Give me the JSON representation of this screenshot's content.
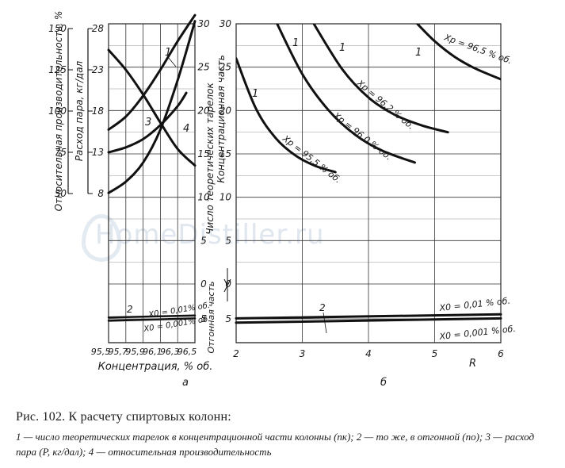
{
  "watermark": "HomeDistiller.ru",
  "caption": {
    "title": "Рис. 102. К расчету спиртовых колонн:",
    "body": "1 — число теоретических тарелок в концентрационной части колонны (nк); 2 — то же, в отгонной (nо); 3 — расход пара (P, кг/дал); 4 — относительная производительность"
  },
  "chart_data": [
    {
      "id": "a",
      "panel_label": "а",
      "type": "line",
      "xlabel": "Концентрация, % об.",
      "x_ticks": [
        "95,5",
        "95,7",
        "95,9",
        "96,1",
        "96,3",
        "96,5"
      ],
      "xlim": [
        95.5,
        96.5
      ],
      "axes": [
        {
          "label": "Относительная производительность, %",
          "ticks": [
            "150",
            "125",
            "100",
            "75",
            "50"
          ],
          "lim": [
            50,
            150
          ]
        },
        {
          "label": "Расход пара, кг/дал",
          "ticks": [
            "28",
            "23",
            "18",
            "13",
            "8"
          ],
          "lim": [
            8,
            28
          ]
        },
        {
          "label": "Число теоретических тарелок",
          "top_label": "Концентрационная часть",
          "bottom_label": "Отгонная часть",
          "ticks_upper": [
            "30",
            "25",
            "20",
            "15",
            "10",
            "5",
            "0"
          ],
          "ticks_lower": [
            "5"
          ],
          "lim_upper": [
            0,
            30
          ],
          "lim_lower": [
            0,
            5
          ]
        }
      ],
      "series": [
        {
          "name": "1",
          "axis": "plates_upper",
          "x": [
            95.5,
            95.7,
            95.9,
            96.1,
            96.3,
            96.5
          ],
          "y": [
            10.5,
            11.8,
            14.0,
            17.8,
            23.5,
            30.3
          ]
        },
        {
          "name": "1",
          "axis": "plates_upper",
          "x": [
            95.5,
            95.7,
            95.9,
            96.1,
            96.3,
            96.5
          ],
          "y": [
            17.8,
            19.3,
            21.7,
            24.7,
            28.0,
            31.0
          ]
        },
        {
          "name": "3",
          "axis": "steam",
          "x": [
            95.5,
            95.7,
            95.9,
            96.1,
            96.3,
            96.4
          ],
          "y": [
            13.0,
            13.6,
            14.6,
            16.3,
            18.6,
            20.2
          ]
        },
        {
          "name": "4",
          "axis": "productivity",
          "x": [
            95.5,
            95.7,
            95.9,
            96.1,
            96.3,
            96.5
          ],
          "y": [
            137,
            125,
            110,
            93,
            77,
            67
          ]
        },
        {
          "name": "2",
          "axis": "plates_lower",
          "x": [
            95.5,
            96.5
          ],
          "y": [
            5.3,
            5.7
          ],
          "annotation": "X0 = 0,01% об."
        },
        {
          "name": "2",
          "axis": "plates_lower",
          "x": [
            95.5,
            96.5
          ],
          "y": [
            4.6,
            5.1
          ],
          "annotation": "X0 = 0,001% об."
        }
      ]
    },
    {
      "id": "b",
      "panel_label": "б",
      "type": "line",
      "xlabel": "R",
      "x_ticks": [
        "2",
        "3",
        "4",
        "5",
        "6"
      ],
      "xlim": [
        2,
        6
      ],
      "y_ticks_upper": [
        "30",
        "25",
        "20",
        "15",
        "10",
        "5",
        "0"
      ],
      "y_ticks_lower": [
        "5"
      ],
      "series": [
        {
          "name": "1",
          "annotation": "Xp = 95,5 % об.",
          "x": [
            2.0,
            2.3,
            2.6,
            2.9,
            3.2,
            3.5
          ],
          "y": [
            26.0,
            20.2,
            16.8,
            14.8,
            13.6,
            12.9
          ]
        },
        {
          "name": "1",
          "annotation": "Xp = 96,0 % об.",
          "x": [
            2.6,
            3.0,
            3.4,
            3.8,
            4.2,
            4.7
          ],
          "y": [
            30.3,
            24.2,
            20.0,
            17.2,
            15.4,
            14.0
          ]
        },
        {
          "name": "1",
          "annotation": "Xp = 96,2 % об.",
          "x": [
            3.15,
            3.6,
            4.0,
            4.4,
            4.8,
            5.2
          ],
          "y": [
            30.3,
            24.8,
            21.5,
            19.5,
            18.3,
            17.5
          ]
        },
        {
          "name": "1",
          "annotation": "Xp = 96,5 % об.",
          "x": [
            4.7,
            5.0,
            5.3,
            5.6,
            6.0
          ],
          "y": [
            30.3,
            28.0,
            26.2,
            24.9,
            23.6
          ]
        },
        {
          "name": "2",
          "annotation": "X0 = 0,01 % об.",
          "x": [
            2.0,
            6.0
          ],
          "y": [
            5.1,
            5.95
          ]
        },
        {
          "name": "2",
          "annotation": "X0 = 0,001 % об.",
          "x": [
            2.0,
            6.0
          ],
          "y": [
            4.2,
            5.1
          ]
        }
      ]
    }
  ]
}
